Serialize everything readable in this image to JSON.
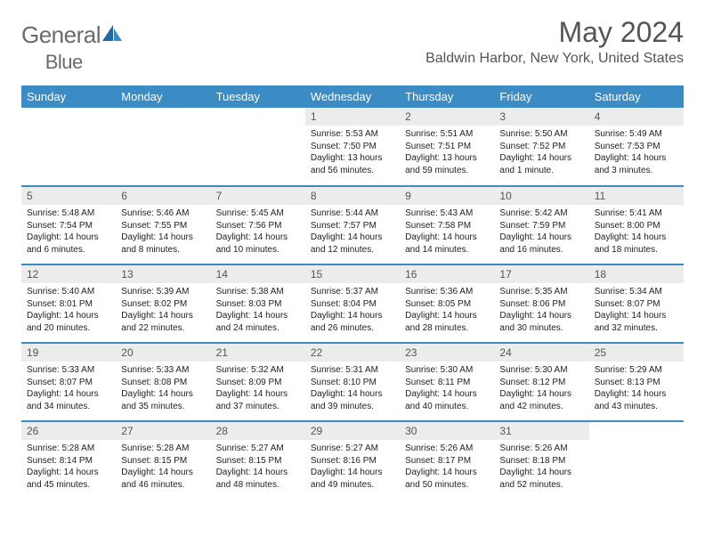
{
  "brand": {
    "part1": "General",
    "part2": "Blue"
  },
  "title": "May 2024",
  "location": "Baldwin Harbor, New York, United States",
  "colors": {
    "header_bg": "#3b8bc4",
    "header_text": "#ffffff",
    "daynum_bg": "#ececec",
    "text": "#222222",
    "border": "#3b8bc4"
  },
  "weekdays": [
    "Sunday",
    "Monday",
    "Tuesday",
    "Wednesday",
    "Thursday",
    "Friday",
    "Saturday"
  ],
  "weeks": [
    [
      null,
      null,
      null,
      {
        "day": "1",
        "sunrise": "Sunrise: 5:53 AM",
        "sunset": "Sunset: 7:50 PM",
        "daylight": "Daylight: 13 hours and 56 minutes."
      },
      {
        "day": "2",
        "sunrise": "Sunrise: 5:51 AM",
        "sunset": "Sunset: 7:51 PM",
        "daylight": "Daylight: 13 hours and 59 minutes."
      },
      {
        "day": "3",
        "sunrise": "Sunrise: 5:50 AM",
        "sunset": "Sunset: 7:52 PM",
        "daylight": "Daylight: 14 hours and 1 minute."
      },
      {
        "day": "4",
        "sunrise": "Sunrise: 5:49 AM",
        "sunset": "Sunset: 7:53 PM",
        "daylight": "Daylight: 14 hours and 3 minutes."
      }
    ],
    [
      {
        "day": "5",
        "sunrise": "Sunrise: 5:48 AM",
        "sunset": "Sunset: 7:54 PM",
        "daylight": "Daylight: 14 hours and 6 minutes."
      },
      {
        "day": "6",
        "sunrise": "Sunrise: 5:46 AM",
        "sunset": "Sunset: 7:55 PM",
        "daylight": "Daylight: 14 hours and 8 minutes."
      },
      {
        "day": "7",
        "sunrise": "Sunrise: 5:45 AM",
        "sunset": "Sunset: 7:56 PM",
        "daylight": "Daylight: 14 hours and 10 minutes."
      },
      {
        "day": "8",
        "sunrise": "Sunrise: 5:44 AM",
        "sunset": "Sunset: 7:57 PM",
        "daylight": "Daylight: 14 hours and 12 minutes."
      },
      {
        "day": "9",
        "sunrise": "Sunrise: 5:43 AM",
        "sunset": "Sunset: 7:58 PM",
        "daylight": "Daylight: 14 hours and 14 minutes."
      },
      {
        "day": "10",
        "sunrise": "Sunrise: 5:42 AM",
        "sunset": "Sunset: 7:59 PM",
        "daylight": "Daylight: 14 hours and 16 minutes."
      },
      {
        "day": "11",
        "sunrise": "Sunrise: 5:41 AM",
        "sunset": "Sunset: 8:00 PM",
        "daylight": "Daylight: 14 hours and 18 minutes."
      }
    ],
    [
      {
        "day": "12",
        "sunrise": "Sunrise: 5:40 AM",
        "sunset": "Sunset: 8:01 PM",
        "daylight": "Daylight: 14 hours and 20 minutes."
      },
      {
        "day": "13",
        "sunrise": "Sunrise: 5:39 AM",
        "sunset": "Sunset: 8:02 PM",
        "daylight": "Daylight: 14 hours and 22 minutes."
      },
      {
        "day": "14",
        "sunrise": "Sunrise: 5:38 AM",
        "sunset": "Sunset: 8:03 PM",
        "daylight": "Daylight: 14 hours and 24 minutes."
      },
      {
        "day": "15",
        "sunrise": "Sunrise: 5:37 AM",
        "sunset": "Sunset: 8:04 PM",
        "daylight": "Daylight: 14 hours and 26 minutes."
      },
      {
        "day": "16",
        "sunrise": "Sunrise: 5:36 AM",
        "sunset": "Sunset: 8:05 PM",
        "daylight": "Daylight: 14 hours and 28 minutes."
      },
      {
        "day": "17",
        "sunrise": "Sunrise: 5:35 AM",
        "sunset": "Sunset: 8:06 PM",
        "daylight": "Daylight: 14 hours and 30 minutes."
      },
      {
        "day": "18",
        "sunrise": "Sunrise: 5:34 AM",
        "sunset": "Sunset: 8:07 PM",
        "daylight": "Daylight: 14 hours and 32 minutes."
      }
    ],
    [
      {
        "day": "19",
        "sunrise": "Sunrise: 5:33 AM",
        "sunset": "Sunset: 8:07 PM",
        "daylight": "Daylight: 14 hours and 34 minutes."
      },
      {
        "day": "20",
        "sunrise": "Sunrise: 5:33 AM",
        "sunset": "Sunset: 8:08 PM",
        "daylight": "Daylight: 14 hours and 35 minutes."
      },
      {
        "day": "21",
        "sunrise": "Sunrise: 5:32 AM",
        "sunset": "Sunset: 8:09 PM",
        "daylight": "Daylight: 14 hours and 37 minutes."
      },
      {
        "day": "22",
        "sunrise": "Sunrise: 5:31 AM",
        "sunset": "Sunset: 8:10 PM",
        "daylight": "Daylight: 14 hours and 39 minutes."
      },
      {
        "day": "23",
        "sunrise": "Sunrise: 5:30 AM",
        "sunset": "Sunset: 8:11 PM",
        "daylight": "Daylight: 14 hours and 40 minutes."
      },
      {
        "day": "24",
        "sunrise": "Sunrise: 5:30 AM",
        "sunset": "Sunset: 8:12 PM",
        "daylight": "Daylight: 14 hours and 42 minutes."
      },
      {
        "day": "25",
        "sunrise": "Sunrise: 5:29 AM",
        "sunset": "Sunset: 8:13 PM",
        "daylight": "Daylight: 14 hours and 43 minutes."
      }
    ],
    [
      {
        "day": "26",
        "sunrise": "Sunrise: 5:28 AM",
        "sunset": "Sunset: 8:14 PM",
        "daylight": "Daylight: 14 hours and 45 minutes."
      },
      {
        "day": "27",
        "sunrise": "Sunrise: 5:28 AM",
        "sunset": "Sunset: 8:15 PM",
        "daylight": "Daylight: 14 hours and 46 minutes."
      },
      {
        "day": "28",
        "sunrise": "Sunrise: 5:27 AM",
        "sunset": "Sunset: 8:15 PM",
        "daylight": "Daylight: 14 hours and 48 minutes."
      },
      {
        "day": "29",
        "sunrise": "Sunrise: 5:27 AM",
        "sunset": "Sunset: 8:16 PM",
        "daylight": "Daylight: 14 hours and 49 minutes."
      },
      {
        "day": "30",
        "sunrise": "Sunrise: 5:26 AM",
        "sunset": "Sunset: 8:17 PM",
        "daylight": "Daylight: 14 hours and 50 minutes."
      },
      {
        "day": "31",
        "sunrise": "Sunrise: 5:26 AM",
        "sunset": "Sunset: 8:18 PM",
        "daylight": "Daylight: 14 hours and 52 minutes."
      },
      null
    ]
  ]
}
